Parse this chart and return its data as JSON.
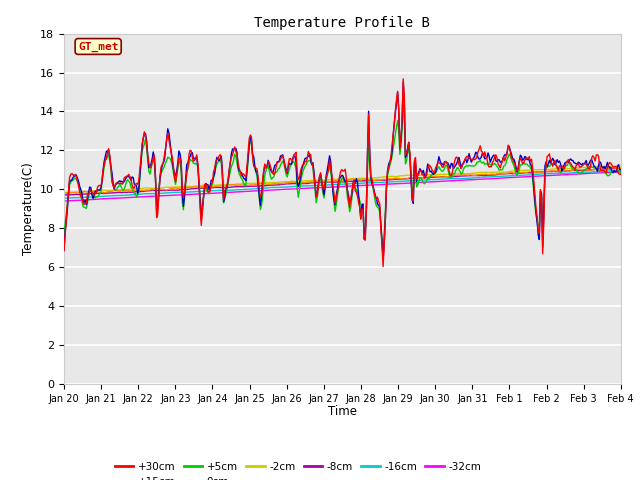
{
  "title": "Temperature Profile B",
  "xlabel": "Time",
  "ylabel": "Temperature(C)",
  "ylim": [
    0,
    18
  ],
  "yticks": [
    0,
    2,
    4,
    6,
    8,
    10,
    12,
    14,
    16,
    18
  ],
  "plot_bg_color": "#e8e8e8",
  "grid_color": "#ffffff",
  "annotation_text": "GT_met",
  "annotation_box_color": "#ffffcc",
  "annotation_box_edge": "#8B0000",
  "annotation_text_color": "#cc0000",
  "series_colors": {
    "+30cm": "#ff0000",
    "+15cm": "#0000cc",
    "+5cm": "#00cc00",
    "0cm": "#ff8800",
    "-2cm": "#cccc00",
    "-8cm": "#aa00aa",
    "-16cm": "#00cccc",
    "-32cm": "#ff00ff"
  },
  "xtick_labels": [
    "Jan 20",
    "Jan 21",
    "Jan 22",
    "Jan 23",
    "Jan 24",
    "Jan 25",
    "Jan 26",
    "Jan 27",
    "Jan 28",
    "Jan 29",
    "Jan 30",
    "Jan 31",
    "Feb 1",
    "Feb 2",
    "Feb 3",
    "Feb 4"
  ],
  "n_points": 500,
  "key_values_30": [
    [
      0.0,
      6.8
    ],
    [
      0.15,
      10.5
    ],
    [
      0.3,
      10.8
    ],
    [
      0.4,
      10.5
    ],
    [
      0.5,
      9.5
    ],
    [
      0.6,
      9.3
    ],
    [
      0.7,
      10.2
    ],
    [
      0.8,
      9.8
    ],
    [
      0.9,
      10.0
    ],
    [
      1.0,
      10.2
    ],
    [
      1.1,
      11.8
    ],
    [
      1.2,
      12.0
    ],
    [
      1.25,
      11.5
    ],
    [
      1.3,
      10.5
    ],
    [
      1.4,
      10.2
    ],
    [
      1.5,
      10.5
    ],
    [
      1.6,
      10.2
    ],
    [
      1.7,
      10.8
    ],
    [
      1.8,
      10.5
    ],
    [
      1.9,
      10.2
    ],
    [
      2.0,
      10.0
    ],
    [
      2.1,
      12.2
    ],
    [
      2.2,
      12.9
    ],
    [
      2.25,
      12.0
    ],
    [
      2.3,
      11.0
    ],
    [
      2.4,
      11.8
    ],
    [
      2.45,
      11.5
    ],
    [
      2.5,
      8.2
    ],
    [
      2.6,
      11.0
    ],
    [
      2.7,
      11.5
    ],
    [
      2.8,
      13.1
    ],
    [
      2.9,
      11.8
    ],
    [
      3.0,
      10.5
    ],
    [
      3.1,
      11.8
    ],
    [
      3.15,
      11.5
    ],
    [
      3.2,
      9.0
    ],
    [
      3.3,
      11.0
    ],
    [
      3.4,
      11.8
    ],
    [
      3.5,
      11.5
    ],
    [
      3.6,
      11.5
    ],
    [
      3.7,
      8.0
    ],
    [
      3.8,
      10.5
    ],
    [
      3.9,
      10.0
    ],
    [
      4.0,
      10.5
    ],
    [
      4.1,
      11.5
    ],
    [
      4.2,
      11.8
    ],
    [
      4.25,
      11.5
    ],
    [
      4.3,
      9.5
    ],
    [
      4.4,
      10.5
    ],
    [
      4.5,
      11.5
    ],
    [
      4.6,
      12.2
    ],
    [
      4.65,
      11.8
    ],
    [
      4.7,
      11.0
    ],
    [
      4.8,
      10.8
    ],
    [
      4.9,
      10.5
    ],
    [
      5.0,
      12.5
    ],
    [
      5.05,
      12.6
    ],
    [
      5.1,
      11.5
    ],
    [
      5.2,
      11.0
    ],
    [
      5.3,
      9.2
    ],
    [
      5.4,
      11.0
    ],
    [
      5.5,
      11.5
    ],
    [
      5.6,
      10.8
    ],
    [
      5.7,
      11.2
    ],
    [
      5.8,
      11.5
    ],
    [
      5.9,
      11.8
    ],
    [
      6.0,
      10.8
    ],
    [
      6.1,
      11.5
    ],
    [
      6.2,
      11.8
    ],
    [
      6.25,
      11.5
    ],
    [
      6.3,
      9.8
    ],
    [
      6.4,
      11.0
    ],
    [
      6.5,
      11.5
    ],
    [
      6.6,
      11.8
    ],
    [
      6.7,
      11.5
    ],
    [
      6.8,
      9.5
    ],
    [
      6.9,
      11.0
    ],
    [
      7.0,
      9.8
    ],
    [
      7.1,
      11.0
    ],
    [
      7.15,
      11.5
    ],
    [
      7.2,
      11.0
    ],
    [
      7.3,
      9.2
    ],
    [
      7.4,
      10.5
    ],
    [
      7.5,
      11.0
    ],
    [
      7.6,
      10.5
    ],
    [
      7.7,
      9.0
    ],
    [
      7.8,
      10.5
    ],
    [
      7.9,
      10.2
    ],
    [
      8.0,
      8.5
    ],
    [
      8.05,
      9.5
    ],
    [
      8.1,
      6.5
    ],
    [
      8.15,
      9.2
    ],
    [
      8.2,
      14.3
    ],
    [
      8.25,
      10.8
    ],
    [
      8.3,
      10.5
    ],
    [
      8.4,
      9.5
    ],
    [
      8.5,
      9.2
    ],
    [
      8.6,
      6.1
    ],
    [
      8.65,
      8.0
    ],
    [
      8.7,
      11.0
    ],
    [
      8.8,
      11.5
    ],
    [
      9.0,
      15.2
    ],
    [
      9.05,
      12.0
    ],
    [
      9.1,
      13.0
    ],
    [
      9.15,
      16.4
    ],
    [
      9.2,
      11.5
    ],
    [
      9.3,
      12.5
    ],
    [
      9.4,
      8.5
    ],
    [
      9.45,
      12.0
    ],
    [
      9.5,
      10.5
    ],
    [
      9.6,
      11.0
    ],
    [
      9.7,
      10.5
    ],
    [
      9.8,
      11.0
    ],
    [
      10.0,
      11.0
    ],
    [
      10.1,
      11.5
    ],
    [
      10.2,
      11.2
    ],
    [
      10.3,
      11.5
    ],
    [
      10.4,
      11.0
    ],
    [
      10.5,
      11.2
    ],
    [
      10.6,
      11.5
    ],
    [
      10.7,
      11.2
    ],
    [
      10.8,
      11.5
    ],
    [
      11.0,
      11.5
    ],
    [
      11.2,
      11.8
    ],
    [
      11.4,
      11.5
    ],
    [
      11.6,
      11.5
    ],
    [
      11.8,
      11.2
    ],
    [
      12.0,
      12.2
    ],
    [
      12.1,
      11.5
    ],
    [
      12.2,
      11.0
    ],
    [
      12.3,
      11.5
    ],
    [
      12.4,
      11.5
    ],
    [
      12.5,
      11.5
    ],
    [
      12.6,
      11.2
    ],
    [
      12.7,
      9.2
    ],
    [
      12.8,
      7.2
    ],
    [
      12.85,
      11.0
    ],
    [
      12.9,
      6.5
    ],
    [
      12.95,
      11.0
    ],
    [
      13.0,
      11.5
    ],
    [
      13.1,
      11.5
    ],
    [
      13.2,
      11.5
    ],
    [
      13.4,
      11.2
    ],
    [
      13.6,
      11.5
    ],
    [
      13.8,
      11.2
    ],
    [
      14.0,
      11.2
    ],
    [
      14.2,
      11.5
    ],
    [
      14.5,
      11.2
    ],
    [
      15.0,
      11.0
    ]
  ]
}
